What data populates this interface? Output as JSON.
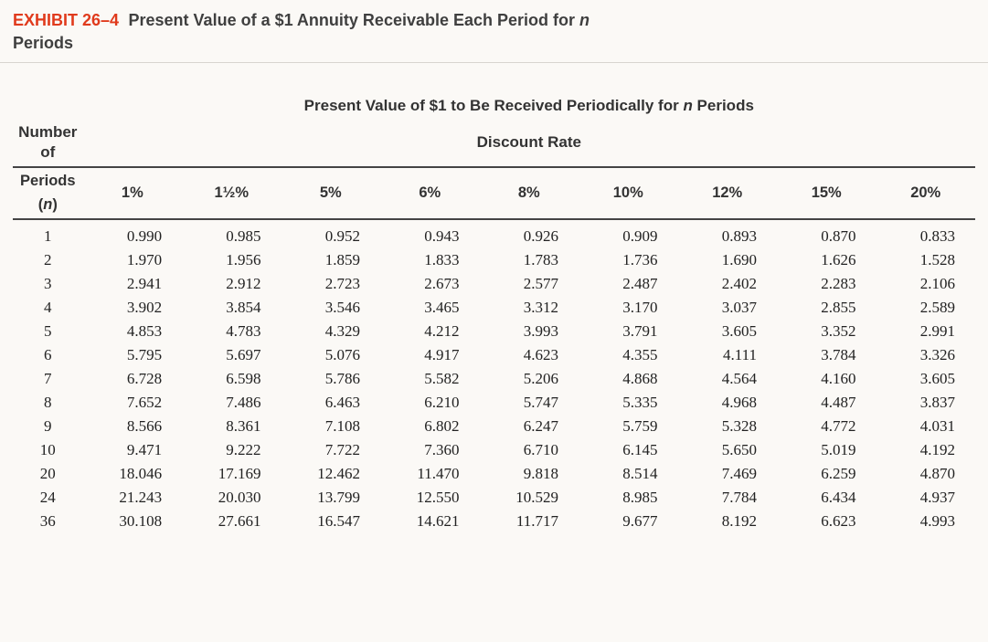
{
  "exhibit": {
    "label": "EXHIBIT 26–4",
    "title_before_n": "Present Value of a $1 Annuity Receivable Each Period for ",
    "title_n": "n",
    "subline": "Periods"
  },
  "table": {
    "main_header_before_n": "Present Value of $1 to Be Received Periodically for ",
    "main_header_n": "n",
    "main_header_after_n": " Periods",
    "sub_left_top": "Number of",
    "sub_center": "Discount Rate",
    "sub_left_mid": "Periods",
    "sub_left_bottom_open": "(",
    "sub_left_bottom_n": "n",
    "sub_left_bottom_close": ")",
    "rates": [
      "1%",
      "1½%",
      "5%",
      "6%",
      "8%",
      "10%",
      "12%",
      "15%",
      "20%"
    ],
    "periods": [
      "1",
      "2",
      "3",
      "4",
      "5",
      "6",
      "7",
      "8",
      "9",
      "10",
      "20",
      "24",
      "36"
    ],
    "rows": [
      [
        "0.990",
        "0.985",
        "0.952",
        "0.943",
        "0.926",
        "0.909",
        "0.893",
        "0.870",
        "0.833"
      ],
      [
        "1.970",
        "1.956",
        "1.859",
        "1.833",
        "1.783",
        "1.736",
        "1.690",
        "1.626",
        "1.528"
      ],
      [
        "2.941",
        "2.912",
        "2.723",
        "2.673",
        "2.577",
        "2.487",
        "2.402",
        "2.283",
        "2.106"
      ],
      [
        "3.902",
        "3.854",
        "3.546",
        "3.465",
        "3.312",
        "3.170",
        "3.037",
        "2.855",
        "2.589"
      ],
      [
        "4.853",
        "4.783",
        "4.329",
        "4.212",
        "3.993",
        "3.791",
        "3.605",
        "3.352",
        "2.991"
      ],
      [
        "5.795",
        "5.697",
        "5.076",
        "4.917",
        "4.623",
        "4.355",
        "4.111",
        "3.784",
        "3.326"
      ],
      [
        "6.728",
        "6.598",
        "5.786",
        "5.582",
        "5.206",
        "4.868",
        "4.564",
        "4.160",
        "3.605"
      ],
      [
        "7.652",
        "7.486",
        "6.463",
        "6.210",
        "5.747",
        "5.335",
        "4.968",
        "4.487",
        "3.837"
      ],
      [
        "8.566",
        "8.361",
        "7.108",
        "6.802",
        "6.247",
        "5.759",
        "5.328",
        "4.772",
        "4.031"
      ],
      [
        "9.471",
        "9.222",
        "7.722",
        "7.360",
        "6.710",
        "6.145",
        "5.650",
        "5.019",
        "4.192"
      ],
      [
        "18.046",
        "17.169",
        "12.462",
        "11.470",
        "9.818",
        "8.514",
        "7.469",
        "6.259",
        "4.870"
      ],
      [
        "21.243",
        "20.030",
        "13.799",
        "12.550",
        "10.529",
        "8.985",
        "7.784",
        "6.434",
        "4.937"
      ],
      [
        "30.108",
        "27.661",
        "16.547",
        "14.621",
        "11.717",
        "9.677",
        "8.192",
        "6.623",
        "4.993"
      ]
    ]
  },
  "style": {
    "accent_color": "#e03a1c",
    "background_color": "#fbf9f6",
    "text_color": "#3a3a3a",
    "rule_color": "#444444",
    "header_fontsize": 18,
    "cell_fontsize": 17,
    "cell_font_family": "Times New Roman",
    "header_font_family": "Arial"
  }
}
